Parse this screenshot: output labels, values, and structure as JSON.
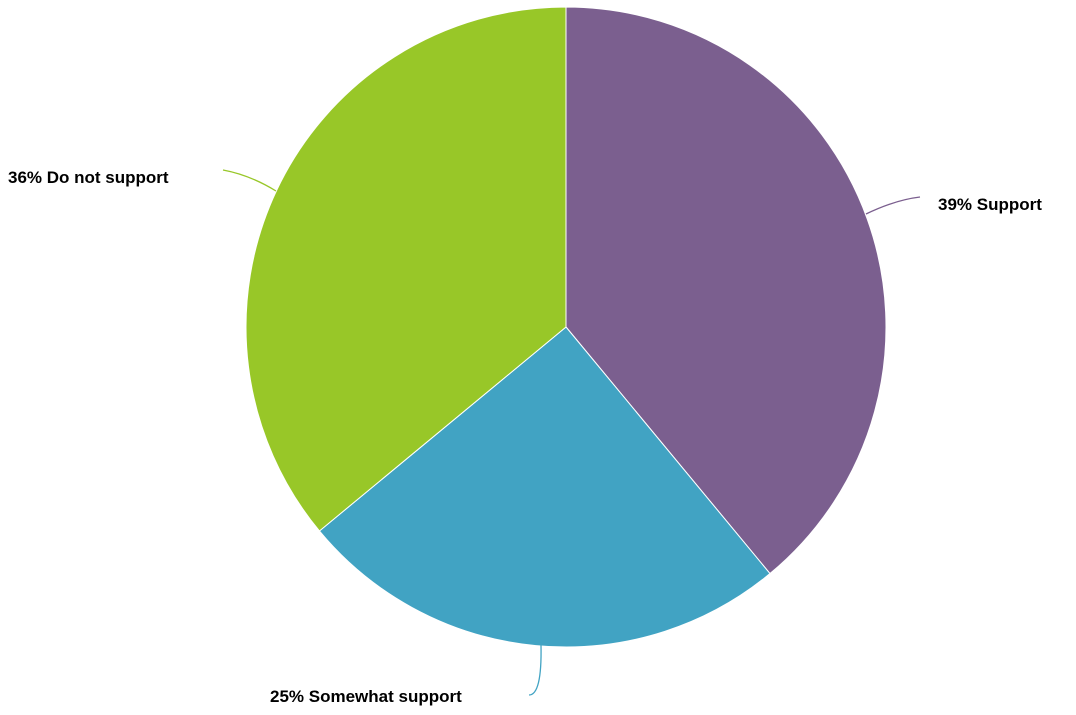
{
  "chart_data": {
    "type": "pie",
    "slices": [
      {
        "label": "Support",
        "value": 39,
        "display": "39% Support",
        "color": "#7b5f8f"
      },
      {
        "label": "Somewhat support",
        "value": 25,
        "display": "25% Somewhat support",
        "color": "#41a3c3"
      },
      {
        "label": "Do not support",
        "value": 36,
        "display": "36% Do not support",
        "color": "#98c728"
      }
    ],
    "legend": "none"
  }
}
